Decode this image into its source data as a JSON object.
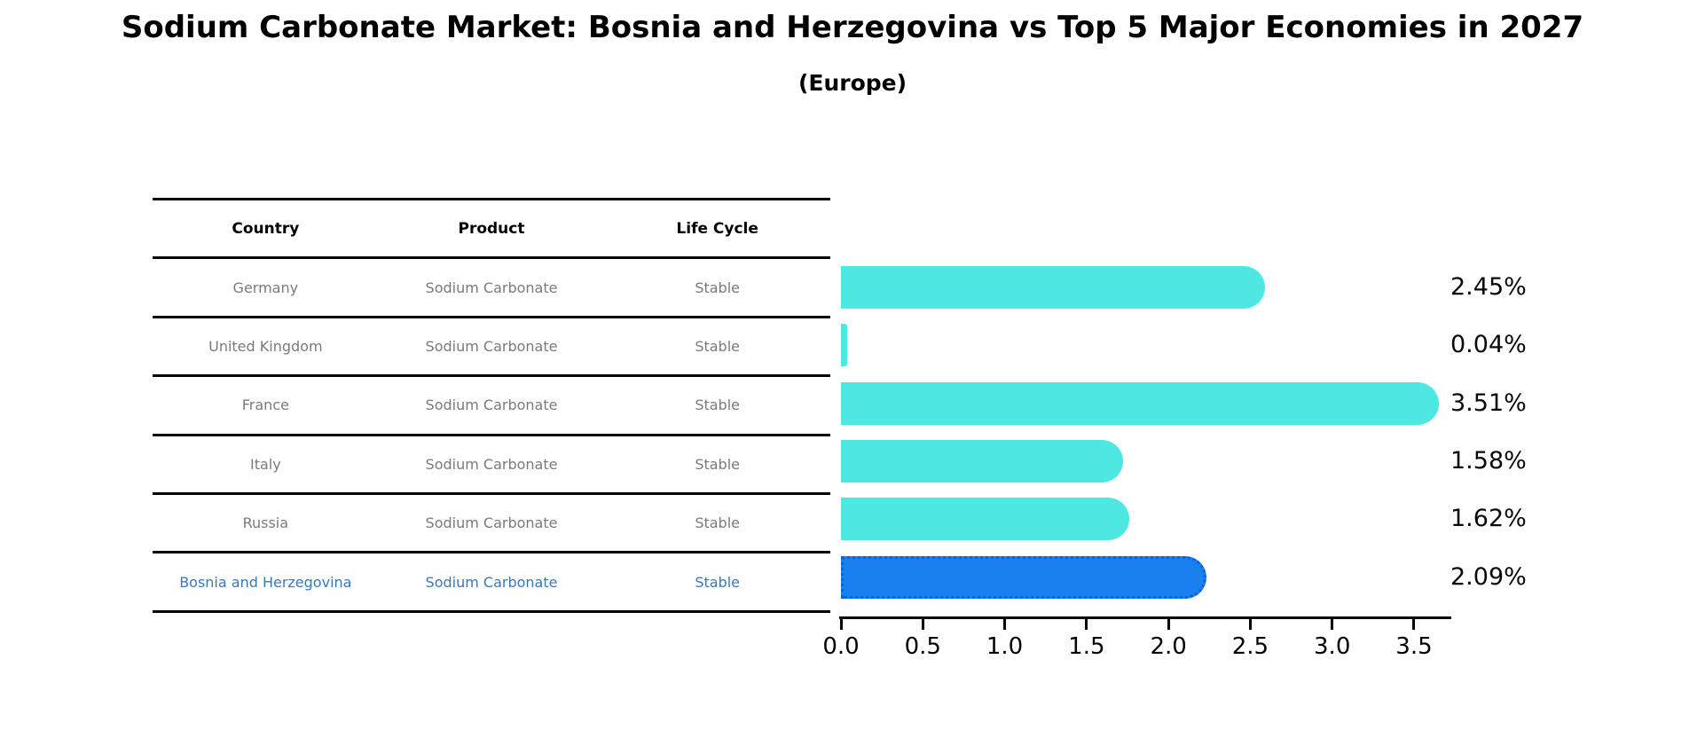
{
  "title": "Sodium Carbonate Market: Bosnia and Herzegovina vs Top 5 Major Economies in 2027",
  "subtitle": "(Europe)",
  "table": {
    "headers": [
      "Country",
      "Product",
      "Life Cycle"
    ],
    "rows": [
      {
        "country": "Germany",
        "product": "Sodium Carbonate",
        "life_cycle": "Stable",
        "highlight": false
      },
      {
        "country": "United Kingdom",
        "product": "Sodium Carbonate",
        "life_cycle": "Stable",
        "highlight": false
      },
      {
        "country": "France",
        "product": "Sodium Carbonate",
        "life_cycle": "Stable",
        "highlight": false
      },
      {
        "country": "Italy",
        "product": "Sodium Carbonate",
        "life_cycle": "Stable",
        "highlight": false
      },
      {
        "country": "Russia",
        "product": "Sodium Carbonate",
        "life_cycle": "Stable",
        "highlight": false
      },
      {
        "country": "Bosnia and Herzegovina",
        "product": "Sodium Carbonate",
        "life_cycle": "Stable",
        "highlight": true
      }
    ]
  },
  "chart_data": {
    "type": "bar",
    "orientation": "horizontal",
    "title": "Sodium Carbonate Market: Bosnia and Herzegovina vs Top 5 Major Economies in 2027",
    "subtitle": "(Europe)",
    "categories": [
      "Germany",
      "United Kingdom",
      "France",
      "Italy",
      "Russia",
      "Bosnia and Herzegovina"
    ],
    "values": [
      2.45,
      0.04,
      3.51,
      1.58,
      1.62,
      2.09
    ],
    "value_labels": [
      "2.45%",
      "0.04%",
      "3.51%",
      "1.58%",
      "1.62%",
      "2.09%"
    ],
    "highlight_index": 5,
    "x_ticks": [
      "0.0",
      "0.5",
      "1.0",
      "1.5",
      "2.0",
      "2.5",
      "3.0",
      "3.5"
    ],
    "xlim": [
      0.0,
      3.72
    ],
    "xlabel": "",
    "ylabel": "",
    "grid": false,
    "legend": "none",
    "colors": {
      "bar_default": "#4DE8E2",
      "bar_highlight": "#1A80F0",
      "bar_highlight_border": "#0E62D8",
      "highlight_text": "#3978B9",
      "row_text": "#7a7a7a",
      "header_text": "#000000",
      "axis": "#000000"
    }
  }
}
